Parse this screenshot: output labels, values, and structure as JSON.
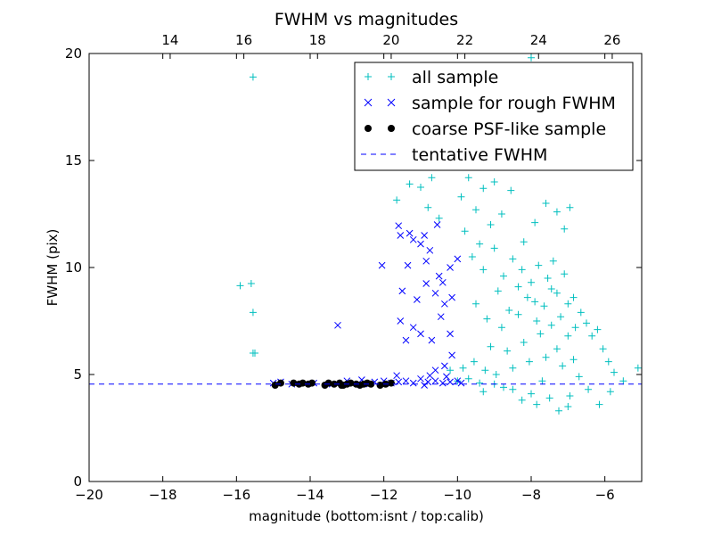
{
  "chart_data": {
    "type": "scatter",
    "title": "FWHM vs magnitudes",
    "xlabel": "magnitude (bottom:isnt / top:calib)",
    "ylabel": "FWHM (pix)",
    "xlim": [
      -20,
      -5
    ],
    "ylim": [
      0,
      20
    ],
    "xticks": [
      -20,
      -18,
      -16,
      -14,
      -12,
      -10,
      -8,
      -6
    ],
    "xtick_labels": [
      "−20",
      "−18",
      "−16",
      "−14",
      "−12",
      "−10",
      "−8",
      "−6"
    ],
    "yticks": [
      0,
      5,
      10,
      15,
      20
    ],
    "ytick_labels": [
      "0",
      "5",
      "10",
      "15",
      "20"
    ],
    "top_axis": {
      "offset": 31.8,
      "ticks": [
        14,
        16,
        18,
        20,
        22,
        24,
        26
      ],
      "tick_labels": [
        "14",
        "16",
        "18",
        "20",
        "22",
        "24",
        "26"
      ]
    },
    "legend": {
      "position": "upper-right",
      "entries": [
        "all sample",
        "sample for rough FWHM",
        "coarse PSF-like sample",
        "tentative FWHM"
      ]
    },
    "grid": false,
    "series": [
      {
        "name": "all sample",
        "marker": "plus",
        "color": "#00bfbf",
        "points": [
          [
            -15.55,
            18.9
          ],
          [
            -15.9,
            9.15
          ],
          [
            -15.6,
            9.25
          ],
          [
            -15.55,
            7.9
          ],
          [
            -15.5,
            6.0
          ],
          [
            -15.55,
            6.0
          ],
          [
            -11.65,
            13.15
          ],
          [
            -11.3,
            13.9
          ],
          [
            -11.0,
            13.75
          ],
          [
            -10.7,
            14.2
          ],
          [
            -10.4,
            15.0
          ],
          [
            -10.1,
            15.3
          ],
          [
            -9.9,
            13.3
          ],
          [
            -9.7,
            14.2
          ],
          [
            -9.5,
            12.7
          ],
          [
            -9.3,
            13.7
          ],
          [
            -9.0,
            14.0
          ],
          [
            -8.7,
            15.5
          ],
          [
            -8.45,
            16.2
          ],
          [
            -8.3,
            18.4
          ],
          [
            -8.0,
            19.8
          ],
          [
            -7.65,
            18.6
          ],
          [
            -10.8,
            12.8
          ],
          [
            -10.5,
            12.3
          ],
          [
            -9.8,
            11.7
          ],
          [
            -9.4,
            11.1
          ],
          [
            -9.1,
            12.0
          ],
          [
            -8.8,
            12.5
          ],
          [
            -8.55,
            13.6
          ],
          [
            -8.2,
            11.2
          ],
          [
            -7.9,
            12.1
          ],
          [
            -7.6,
            13.0
          ],
          [
            -7.3,
            12.6
          ],
          [
            -7.1,
            11.8
          ],
          [
            -6.95,
            12.8
          ],
          [
            -7.4,
            10.3
          ],
          [
            -9.6,
            10.5
          ],
          [
            -9.3,
            9.9
          ],
          [
            -9.0,
            10.9
          ],
          [
            -8.75,
            9.6
          ],
          [
            -8.5,
            10.4
          ],
          [
            -8.25,
            9.9
          ],
          [
            -8.0,
            9.3
          ],
          [
            -7.8,
            10.1
          ],
          [
            -7.55,
            9.5
          ],
          [
            -7.3,
            8.8
          ],
          [
            -7.1,
            9.7
          ],
          [
            -6.85,
            8.6
          ],
          [
            -6.65,
            7.9
          ],
          [
            -6.5,
            7.4
          ],
          [
            -6.35,
            6.8
          ],
          [
            -6.2,
            7.1
          ],
          [
            -6.05,
            6.2
          ],
          [
            -5.9,
            5.6
          ],
          [
            -5.75,
            5.1
          ],
          [
            -6.15,
            3.6
          ],
          [
            -6.45,
            4.3
          ],
          [
            -5.1,
            5.3
          ],
          [
            -5.5,
            4.7
          ],
          [
            -5.85,
            4.2
          ],
          [
            -10.2,
            5.2
          ],
          [
            -10.0,
            4.7
          ],
          [
            -9.85,
            5.3
          ],
          [
            -9.7,
            4.8
          ],
          [
            -9.55,
            5.6
          ],
          [
            -9.4,
            4.6
          ],
          [
            -9.25,
            5.2
          ],
          [
            -9.1,
            6.3
          ],
          [
            -8.95,
            5.0
          ],
          [
            -8.8,
            7.2
          ],
          [
            -8.65,
            6.1
          ],
          [
            -8.5,
            5.3
          ],
          [
            -8.35,
            7.8
          ],
          [
            -8.2,
            6.5
          ],
          [
            -8.05,
            5.6
          ],
          [
            -7.9,
            8.4
          ],
          [
            -7.75,
            6.9
          ],
          [
            -7.6,
            5.8
          ],
          [
            -7.45,
            7.3
          ],
          [
            -7.3,
            6.2
          ],
          [
            -7.15,
            5.4
          ],
          [
            -7.0,
            6.8
          ],
          [
            -6.85,
            5.7
          ],
          [
            -6.7,
            4.9
          ],
          [
            -9.0,
            4.55
          ],
          [
            -8.5,
            4.3
          ],
          [
            -8.0,
            4.1
          ],
          [
            -7.5,
            3.9
          ],
          [
            -7.0,
            3.5
          ],
          [
            -7.25,
            3.3
          ],
          [
            -8.25,
            3.8
          ],
          [
            -8.75,
            4.4
          ],
          [
            -9.3,
            4.2
          ],
          [
            -7.7,
            4.7
          ],
          [
            -6.95,
            4.0
          ],
          [
            -7.85,
            3.6
          ],
          [
            -9.5,
            8.3
          ],
          [
            -9.2,
            7.6
          ],
          [
            -8.9,
            8.9
          ],
          [
            -8.6,
            8.0
          ],
          [
            -8.35,
            9.1
          ],
          [
            -8.1,
            8.6
          ],
          [
            -7.85,
            7.5
          ],
          [
            -7.65,
            8.2
          ],
          [
            -7.45,
            9.0
          ],
          [
            -7.2,
            7.7
          ],
          [
            -7.0,
            8.3
          ],
          [
            -6.8,
            7.2
          ]
        ]
      },
      {
        "name": "sample for rough FWHM",
        "marker": "x",
        "color": "#0000ff",
        "points": [
          [
            -13.25,
            7.3
          ],
          [
            -11.6,
            11.95
          ],
          [
            -11.55,
            11.5
          ],
          [
            -11.3,
            11.6
          ],
          [
            -11.2,
            11.3
          ],
          [
            -11.0,
            11.1
          ],
          [
            -10.9,
            11.5
          ],
          [
            -10.75,
            10.8
          ],
          [
            -10.55,
            12.0
          ],
          [
            -12.05,
            10.1
          ],
          [
            -11.35,
            10.1
          ],
          [
            -10.85,
            10.3
          ],
          [
            -10.5,
            9.6
          ],
          [
            -10.4,
            9.3
          ],
          [
            -10.2,
            10.0
          ],
          [
            -10.0,
            10.4
          ],
          [
            -11.5,
            8.9
          ],
          [
            -11.1,
            8.5
          ],
          [
            -10.85,
            9.25
          ],
          [
            -10.6,
            8.8
          ],
          [
            -10.35,
            8.3
          ],
          [
            -10.15,
            8.6
          ],
          [
            -11.2,
            7.2
          ],
          [
            -11.0,
            6.9
          ],
          [
            -10.7,
            6.6
          ],
          [
            -10.45,
            7.7
          ],
          [
            -10.2,
            6.9
          ],
          [
            -11.55,
            7.5
          ],
          [
            -11.4,
            6.6
          ],
          [
            -10.6,
            5.2
          ],
          [
            -10.35,
            5.4
          ],
          [
            -10.15,
            5.9
          ],
          [
            -12.25,
            4.65
          ],
          [
            -12.0,
            4.7
          ],
          [
            -11.8,
            4.6
          ],
          [
            -11.6,
            4.65
          ],
          [
            -11.4,
            4.7
          ],
          [
            -11.2,
            4.6
          ],
          [
            -11.0,
            4.8
          ],
          [
            -10.8,
            4.65
          ],
          [
            -10.6,
            4.7
          ],
          [
            -10.4,
            4.6
          ],
          [
            -10.2,
            4.65
          ],
          [
            -10.0,
            4.7
          ],
          [
            -10.75,
            4.95
          ],
          [
            -10.9,
            4.5
          ],
          [
            -11.65,
            4.95
          ],
          [
            -10.3,
            4.9
          ],
          [
            -9.9,
            4.6
          ],
          [
            -15.0,
            4.6
          ],
          [
            -14.8,
            4.65
          ],
          [
            -14.5,
            4.55
          ],
          [
            -13.9,
            4.6
          ],
          [
            -13.4,
            4.55
          ],
          [
            -13.0,
            4.7
          ],
          [
            -12.6,
            4.75
          ],
          [
            -12.4,
            4.55
          ]
        ]
      },
      {
        "name": "coarse PSF-like sample",
        "marker": "dot",
        "color": "#000000",
        "points": [
          [
            -14.95,
            4.5
          ],
          [
            -14.8,
            4.6
          ],
          [
            -14.45,
            4.6
          ],
          [
            -14.3,
            4.55
          ],
          [
            -14.2,
            4.6
          ],
          [
            -14.05,
            4.55
          ],
          [
            -13.95,
            4.6
          ],
          [
            -13.6,
            4.5
          ],
          [
            -13.5,
            4.6
          ],
          [
            -13.35,
            4.55
          ],
          [
            -13.2,
            4.6
          ],
          [
            -13.1,
            4.5
          ],
          [
            -13.0,
            4.55
          ],
          [
            -12.9,
            4.6
          ],
          [
            -12.75,
            4.55
          ],
          [
            -12.65,
            4.5
          ],
          [
            -12.55,
            4.55
          ],
          [
            -12.45,
            4.6
          ],
          [
            -12.1,
            4.5
          ],
          [
            -11.95,
            4.55
          ],
          [
            -11.8,
            4.6
          ],
          [
            -13.15,
            4.5
          ],
          [
            -12.35,
            4.55
          ]
        ]
      },
      {
        "name": "tentative FWHM",
        "marker": "dashed-line",
        "color": "#0000ff",
        "y": 4.55
      }
    ]
  }
}
